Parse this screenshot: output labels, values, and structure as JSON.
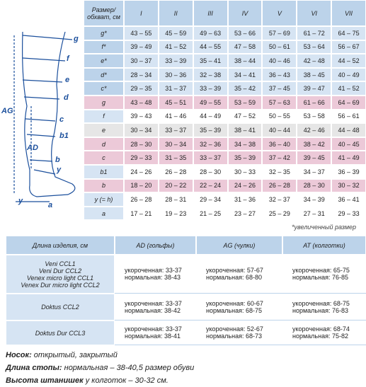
{
  "size_table": {
    "header": "Размер/ обхват, см",
    "columns": [
      "I",
      "II",
      "III",
      "IV",
      "V",
      "VI",
      "VII"
    ],
    "rows": [
      {
        "label": "g*",
        "cells": [
          "43 – 55",
          "45 – 59",
          "49 – 63",
          "53 – 66",
          "57 – 69",
          "61 – 72",
          "64 – 75"
        ]
      },
      {
        "label": "f*",
        "cells": [
          "39 – 49",
          "41 – 52",
          "44 – 55",
          "47 – 58",
          "50 – 61",
          "53 – 64",
          "56 – 67"
        ]
      },
      {
        "label": "e*",
        "cells": [
          "30 – 37",
          "33 – 39",
          "35 – 41",
          "38 – 44",
          "40 – 46",
          "42 – 48",
          "44 – 52"
        ]
      },
      {
        "label": "d*",
        "cells": [
          "28 – 34",
          "30 – 36",
          "32 – 38",
          "34 – 41",
          "36 – 43",
          "38 – 45",
          "40 – 49"
        ]
      },
      {
        "label": "c*",
        "cells": [
          "29 – 35",
          "31 – 37",
          "33 – 39",
          "35 – 42",
          "37 – 45",
          "39 – 47",
          "41 – 52"
        ]
      },
      {
        "label": "g",
        "cells": [
          "43 – 48",
          "45 – 51",
          "49 – 55",
          "53 – 59",
          "57 – 63",
          "61 – 66",
          "64 – 69"
        ]
      },
      {
        "label": "f",
        "cells": [
          "39 – 43",
          "41 – 46",
          "44 – 49",
          "47 – 52",
          "50 – 55",
          "53 – 58",
          "56 – 61"
        ]
      },
      {
        "label": "e",
        "cells": [
          "30 – 34",
          "33 – 37",
          "35 – 39",
          "38 – 41",
          "40 – 44",
          "42 – 46",
          "44 – 48"
        ]
      },
      {
        "label": "d",
        "cells": [
          "28 – 30",
          "30 – 34",
          "32 – 36",
          "34 – 38",
          "36 – 40",
          "38 – 42",
          "40 – 45"
        ]
      },
      {
        "label": "c",
        "cells": [
          "29 – 33",
          "31 – 35",
          "33 – 37",
          "35 – 39",
          "37 – 42",
          "39 – 45",
          "41 – 49"
        ]
      },
      {
        "label": "b1",
        "cells": [
          "24 – 26",
          "26 – 28",
          "28 – 30",
          "30 – 33",
          "32 – 35",
          "34 – 37",
          "36 – 39"
        ]
      },
      {
        "label": "b",
        "cells": [
          "18 – 20",
          "20 – 22",
          "22 – 24",
          "24 – 26",
          "26 – 28",
          "28 – 30",
          "30 – 32"
        ]
      },
      {
        "label": "y (= h)",
        "cells": [
          "26 – 28",
          "28 – 31",
          "29 – 34",
          "31 – 36",
          "32 – 37",
          "34 – 39",
          "36 – 41"
        ]
      },
      {
        "label": "a",
        "cells": [
          "17 – 21",
          "19 – 23",
          "21 – 25",
          "23 – 27",
          "25 – 29",
          "27 – 31",
          "29 – 33"
        ]
      }
    ]
  },
  "note": "*увеличенный размер",
  "length_table": {
    "headers": [
      "Длина изделия, см",
      "AD (гольфы)",
      "AG (чулки)",
      "AT (колготки)"
    ],
    "rows": [
      {
        "products": [
          "Veni CCL1",
          "Veni Dur CCL2",
          "Venex micro light CCL1",
          "Venex Dur micro light CCL2"
        ],
        "cells": [
          [
            "укороченная: 33-37",
            "нормальная: 38-43"
          ],
          [
            "укороченная: 57-67",
            "нормальная: 68-80"
          ],
          [
            "укороченная: 65-75",
            "нормальная: 76-85"
          ]
        ]
      },
      {
        "products": [
          "Doktus CCL2"
        ],
        "cells": [
          [
            "укороченная: 33-37",
            "нормальная: 38-42"
          ],
          [
            "укороченная: 60-67",
            "нормальная: 68-75"
          ],
          [
            "укороченная: 68-75",
            "нормальная: 76-83"
          ]
        ]
      },
      {
        "products": [
          "Doktus Dur CCL3"
        ],
        "cells": [
          [
            "укороченная: 33-37",
            "нормальная: 38-41"
          ],
          [
            "укороченная: 52-67",
            "нормальная: 68-73"
          ],
          [
            "укороченная: 68-74",
            "нормальная: 75-82"
          ]
        ]
      }
    ]
  },
  "footer": [
    {
      "key": "Носок:",
      "text": " открытый, закрытый"
    },
    {
      "key": "Длина стопы:",
      "text": " нормальная – 38-40,5 размер обуви"
    },
    {
      "key": "Высота штанишек",
      "text": " у колготок – 30-32 см."
    }
  ],
  "diagram": {
    "labels": [
      "g",
      "f",
      "e",
      "d",
      "c",
      "b1",
      "b",
      "y",
      "a",
      "AG",
      "AD",
      "y"
    ]
  }
}
